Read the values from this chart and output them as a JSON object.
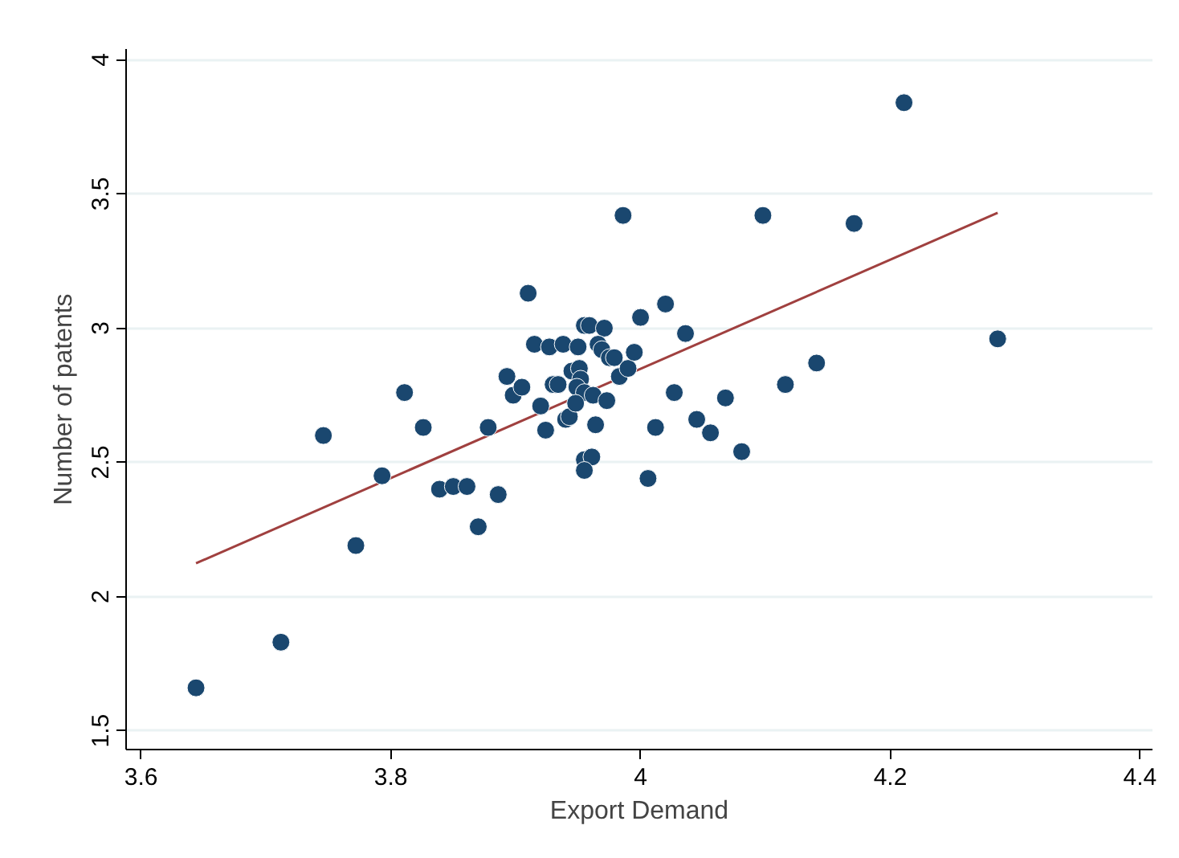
{
  "chart_data": {
    "type": "scatter",
    "xlabel": "Export Demand",
    "ylabel": "Number of patents",
    "xlim": [
      3.588,
      4.41
    ],
    "ylim": [
      1.43,
      4.04
    ],
    "xticks": [
      3.6,
      3.8,
      4,
      4.2,
      4.4
    ],
    "yticks": [
      1.5,
      2,
      2.5,
      3,
      3.5,
      4
    ],
    "grid": "y",
    "series": [
      {
        "color": "#1a476f",
        "marker": "circle",
        "x": [
          3.644,
          3.712,
          3.746,
          3.772,
          3.793,
          3.811,
          3.826,
          3.839,
          3.85,
          3.861,
          3.87,
          3.878,
          3.886,
          3.893,
          3.898,
          3.91,
          3.905,
          3.915,
          3.927,
          3.938,
          3.95,
          3.92,
          3.924,
          3.93,
          3.934,
          3.94,
          3.943,
          3.945,
          3.951,
          3.952,
          3.949,
          3.955,
          3.962,
          3.948,
          3.955,
          3.959,
          3.971,
          3.966,
          3.969,
          3.975,
          3.979,
          3.973,
          3.964,
          3.983,
          3.99,
          3.995,
          4.0,
          4.02,
          4.036,
          4.027,
          4.012,
          4.045,
          4.056,
          4.068,
          4.081,
          4.116,
          3.955,
          3.961,
          3.955,
          4.006,
          4.098,
          4.171,
          4.286,
          4.141,
          3.986,
          4.211
        ],
        "values": [
          1.66,
          1.83,
          2.6,
          2.19,
          2.45,
          2.76,
          2.63,
          2.4,
          2.41,
          2.41,
          2.26,
          2.63,
          2.38,
          2.82,
          2.75,
          3.13,
          2.78,
          2.94,
          2.93,
          2.94,
          2.93,
          2.71,
          2.62,
          2.79,
          2.79,
          2.66,
          2.67,
          2.84,
          2.85,
          2.81,
          2.78,
          2.76,
          2.75,
          2.72,
          3.01,
          3.01,
          3.0,
          2.94,
          2.92,
          2.89,
          2.89,
          2.73,
          2.64,
          2.82,
          2.85,
          2.91,
          3.04,
          3.09,
          2.98,
          2.76,
          2.63,
          2.66,
          2.61,
          2.74,
          2.54,
          2.79,
          2.51,
          2.52,
          2.47,
          2.44,
          3.42,
          3.39,
          2.96,
          2.87,
          3.42,
          3.84
        ]
      },
      {
        "type": "line",
        "color": "#a0403f",
        "x": [
          3.644,
          4.286
        ],
        "values": [
          2.124,
          3.43
        ]
      }
    ]
  }
}
